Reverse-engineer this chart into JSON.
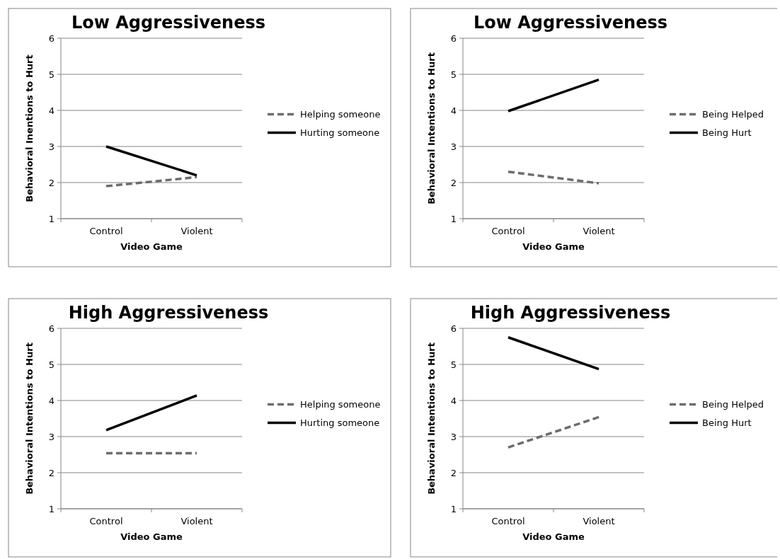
{
  "chart_data": [
    {
      "type": "line",
      "title": "Low Aggressiveness",
      "xlabel": "Video Game",
      "ylabel": "Behavioral Inentions to Hurt",
      "categories": [
        "Control",
        "Violent"
      ],
      "ylim": [
        1,
        6
      ],
      "yticks": [
        1,
        2,
        3,
        4,
        5,
        6
      ],
      "grid": "y",
      "legend": "right",
      "marker": "none",
      "series": [
        {
          "name": "Helping someone",
          "color": "#6d6d6d",
          "line_style": "dashed",
          "values": [
            1.9,
            2.15
          ]
        },
        {
          "name": "Hurting someone",
          "color": "#000000",
          "line_style": "solid",
          "values": [
            3.0,
            2.2
          ]
        }
      ]
    },
    {
      "type": "line",
      "title": "Low Aggressiveness",
      "xlabel": "Video Game",
      "ylabel": "Behavioral Intentions to Hurt",
      "categories": [
        "Control",
        "Violent"
      ],
      "ylim": [
        1,
        6
      ],
      "yticks": [
        1,
        2,
        3,
        4,
        5,
        6
      ],
      "grid": "y",
      "legend": "right",
      "marker": "none",
      "series": [
        {
          "name": "Being Helped",
          "color": "#6d6d6d",
          "line_style": "dashed",
          "values": [
            2.3,
            1.98
          ]
        },
        {
          "name": "Being Hurt",
          "color": "#000000",
          "line_style": "solid",
          "values": [
            3.98,
            4.85
          ]
        }
      ]
    },
    {
      "type": "line",
      "title": "High Aggressiveness",
      "xlabel": "Video Game",
      "ylabel": "Behavioral Intentions to Hurt",
      "categories": [
        "Control",
        "Violent"
      ],
      "ylim": [
        1,
        6
      ],
      "yticks": [
        1,
        2,
        3,
        4,
        5,
        6
      ],
      "grid": "y",
      "legend": "right",
      "marker": "none",
      "series": [
        {
          "name": "Helping someone",
          "color": "#6d6d6d",
          "line_style": "dashed",
          "values": [
            2.54,
            2.54
          ]
        },
        {
          "name": "Hurting someone",
          "color": "#000000",
          "line_style": "solid",
          "values": [
            3.18,
            4.14
          ]
        }
      ]
    },
    {
      "type": "line",
      "title": "High Aggressiveness",
      "xlabel": "Video Game",
      "ylabel": "Behavioral Intentions to Hurt",
      "categories": [
        "Control",
        "Violent"
      ],
      "ylim": [
        1,
        6
      ],
      "yticks": [
        1,
        2,
        3,
        4,
        5,
        6
      ],
      "grid": "y",
      "legend": "right",
      "marker": "none",
      "series": [
        {
          "name": "Being Helped",
          "color": "#6d6d6d",
          "line_style": "dashed",
          "values": [
            2.7,
            3.54
          ]
        },
        {
          "name": "Being Hurt",
          "color": "#000000",
          "line_style": "solid",
          "values": [
            5.75,
            4.87
          ]
        }
      ]
    }
  ]
}
